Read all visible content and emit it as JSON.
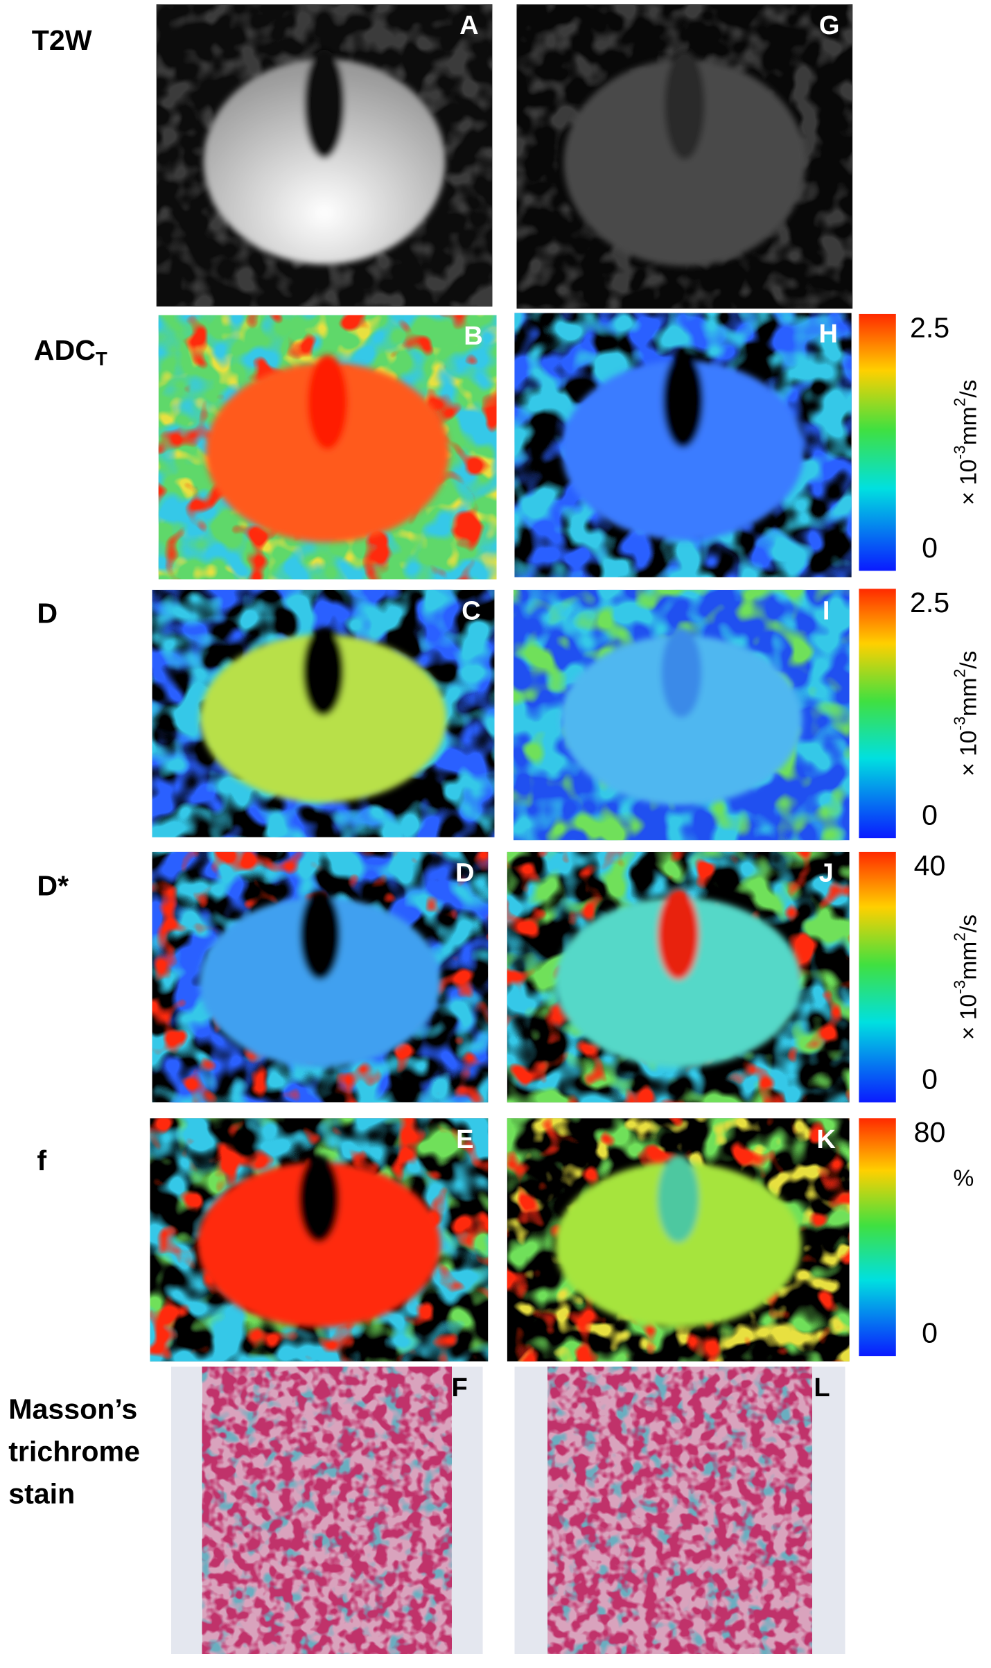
{
  "rows": [
    {
      "label": [
        "T2W"
      ],
      "panels": [
        "A",
        "G"
      ]
    },
    {
      "label": [
        "ADC"
      ],
      "label_sub": "T",
      "panels": [
        "B",
        "H"
      ],
      "colorbar": {
        "max": 2.5,
        "min": 0,
        "unit": [
          {
            "t": "× 10"
          },
          {
            "t": "-3",
            "sup": true
          },
          {
            "t": "mm"
          },
          {
            "t": "2",
            "sup": true
          },
          {
            "t": "/s"
          }
        ],
        "unit_rotated": true
      }
    },
    {
      "label": [
        "D"
      ],
      "panels": [
        "C",
        "I"
      ],
      "colorbar": {
        "max": 2.5,
        "min": 0,
        "unit": [
          {
            "t": "× 10"
          },
          {
            "t": "-3",
            "sup": true
          },
          {
            "t": "mm"
          },
          {
            "t": "2",
            "sup": true
          },
          {
            "t": "/s"
          }
        ],
        "unit_rotated": true
      }
    },
    {
      "label": [
        "D*"
      ],
      "panels": [
        "D",
        "J"
      ],
      "colorbar": {
        "max": 40,
        "min": 0,
        "unit": [
          {
            "t": "× 10"
          },
          {
            "t": "-3",
            "sup": true
          },
          {
            "t": "mm"
          },
          {
            "t": "2",
            "sup": true
          },
          {
            "t": "/s"
          }
        ],
        "unit_rotated": true
      }
    },
    {
      "label": [
        "f"
      ],
      "panels": [
        "E",
        "K"
      ],
      "colorbar": {
        "max": 80,
        "min": 0,
        "unit": [
          {
            "t": "%"
          }
        ],
        "unit_rotated": false
      }
    },
    {
      "label": [
        "Masson’s",
        "trichrome",
        "stain"
      ],
      "panels": [
        "F",
        "L"
      ]
    }
  ]
}
